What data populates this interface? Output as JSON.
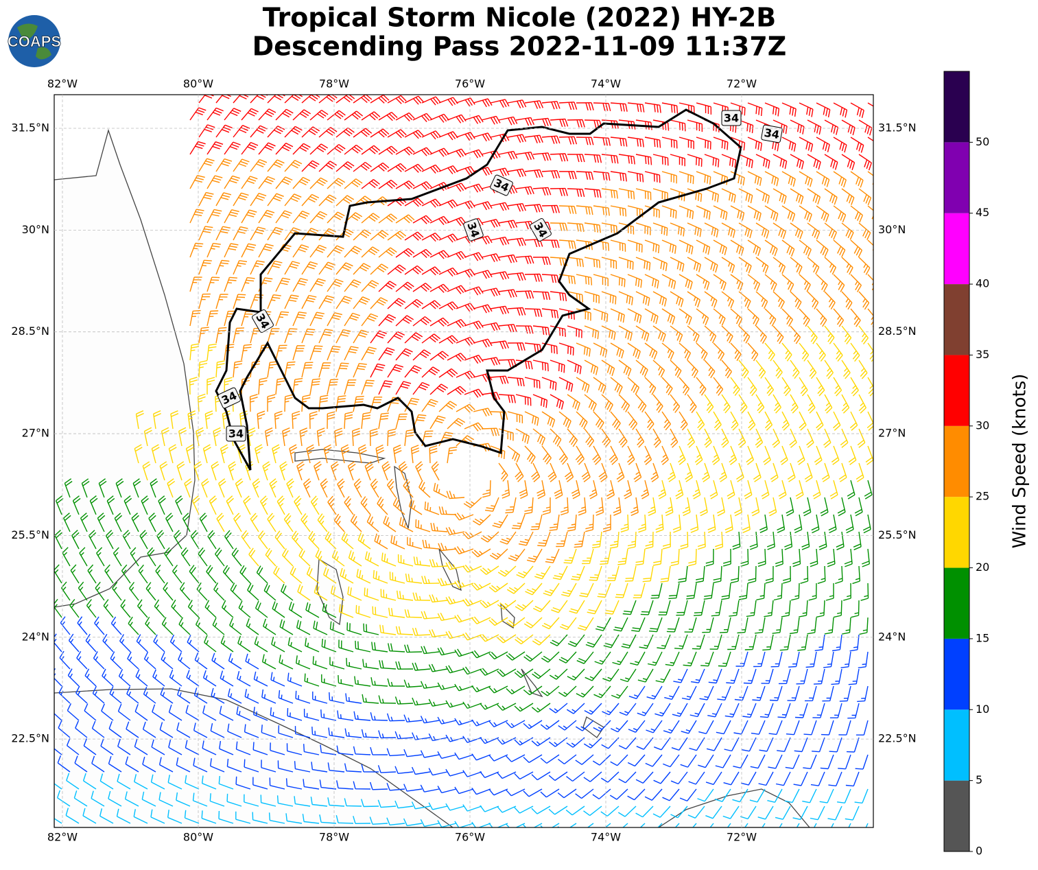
{
  "logo": "COAPS",
  "title": {
    "line1": "Tropical Storm Nicole (2022) HY-2B",
    "line2": "Descending Pass 2022-11-09 11:37Z"
  },
  "map": {
    "lon_ticks": [
      {
        "value": -82,
        "label": "82°W"
      },
      {
        "value": -80,
        "label": "80°W"
      },
      {
        "value": -78,
        "label": "78°W"
      },
      {
        "value": -76,
        "label": "76°W"
      },
      {
        "value": -74,
        "label": "74°W"
      },
      {
        "value": -72,
        "label": "72°W"
      }
    ],
    "lat_ticks": [
      {
        "value": 31.5,
        "label": "31.5°N"
      },
      {
        "value": 30,
        "label": "30°N"
      },
      {
        "value": 28.5,
        "label": "28.5°N"
      },
      {
        "value": 27,
        "label": "27°N"
      },
      {
        "value": 25.5,
        "label": "25.5°N"
      },
      {
        "value": 24,
        "label": "24°N"
      },
      {
        "value": 22.5,
        "label": "22.5°N"
      }
    ],
    "contour_labels": [
      "34",
      "34",
      "34",
      "34",
      "34",
      "34",
      "34",
      "34"
    ]
  },
  "colorbar": {
    "label": "Wind Speed (knots)",
    "lim": [
      0,
      55
    ],
    "bounds": [
      0,
      5,
      10,
      15,
      20,
      25,
      30,
      35,
      40,
      45,
      50,
      55
    ],
    "colors": [
      "#555555",
      "#00bfff",
      "#0040ff",
      "#009000",
      "#ffd700",
      "#ff8c00",
      "#ff0000",
      "#804030",
      "#ff00ff",
      "#8000b0",
      "#2a0050"
    ],
    "ticks": [
      0,
      5,
      10,
      15,
      20,
      25,
      30,
      35,
      40,
      45,
      50
    ]
  }
}
